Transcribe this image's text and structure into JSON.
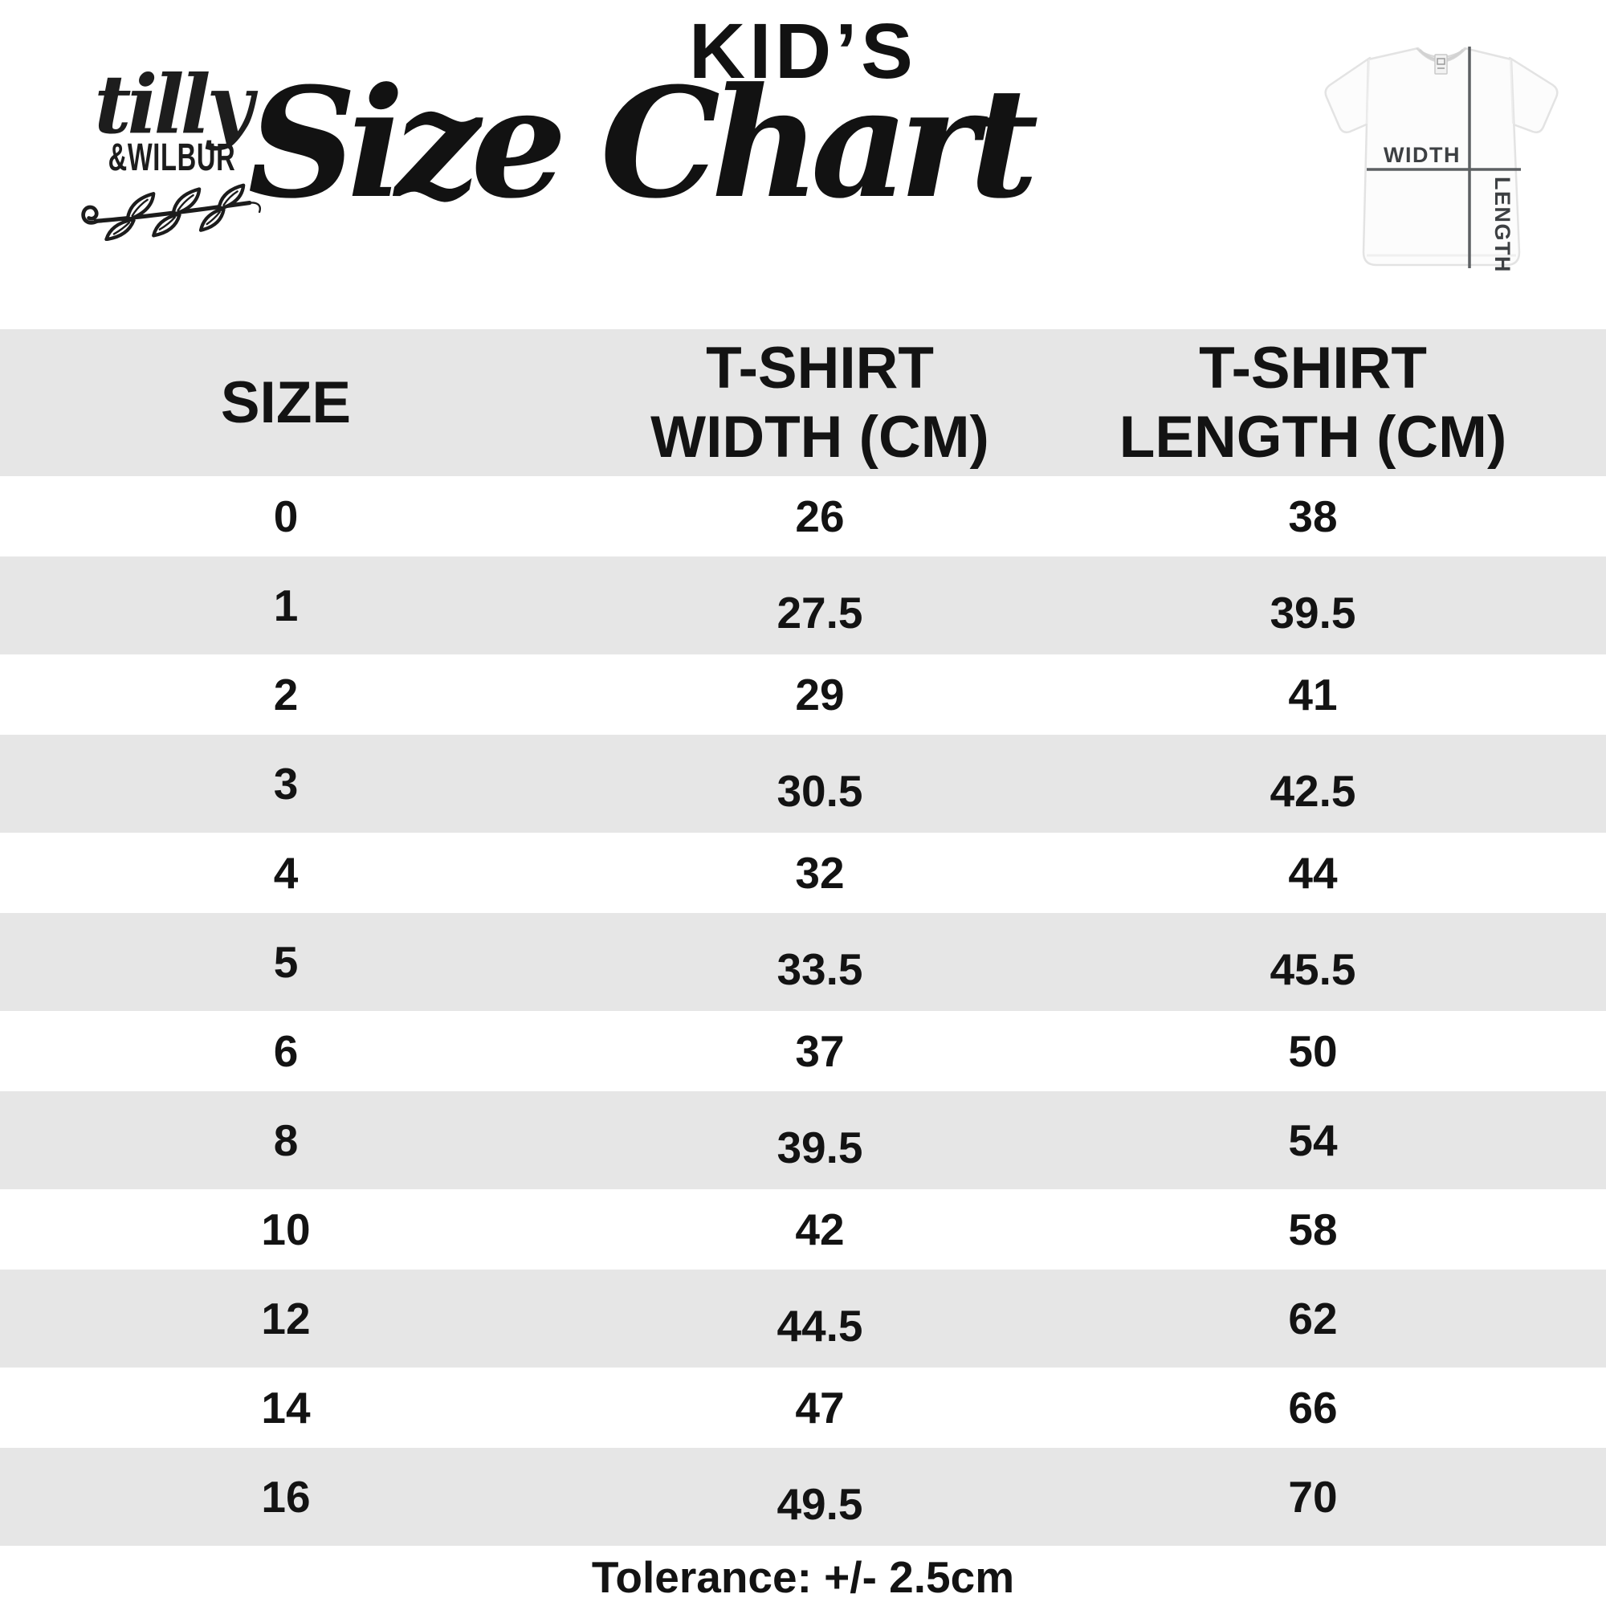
{
  "brand": {
    "script_name": "tilly",
    "caps_name": "&WILBUR"
  },
  "title": {
    "kicker": "KID’S",
    "main": "Size Chart"
  },
  "tee_diagram": {
    "width_label": "WIDTH",
    "length_label": "LENGTH"
  },
  "table": {
    "header": {
      "size": "SIZE",
      "width_line1": "T-SHIRT",
      "width_line2": "WIDTH (CM)",
      "length_line1": "T-SHIRT",
      "length_line2": "LENGTH (CM)"
    },
    "rows": [
      [
        "0",
        "26",
        "38"
      ],
      [
        "1",
        "27.5",
        "39.5"
      ],
      [
        "2",
        "29",
        "41"
      ],
      [
        "3",
        "30.5",
        "42.5"
      ],
      [
        "4",
        "32",
        "44"
      ],
      [
        "5",
        "33.5",
        "45.5"
      ],
      [
        "6",
        "37",
        "50"
      ],
      [
        "8",
        "39.5",
        "54"
      ],
      [
        "10",
        "42",
        "58"
      ],
      [
        "12",
        "44.5",
        "62"
      ],
      [
        "14",
        "47",
        "66"
      ],
      [
        "16",
        "49.5",
        "70"
      ]
    ]
  },
  "footer": {
    "tolerance": "Tolerance: +/- 2.5cm"
  },
  "colors": {
    "band_gray": "#e6e6e6",
    "ink": "#131313",
    "measure_line": "#5d6063",
    "measure_label": "#3d4043"
  }
}
